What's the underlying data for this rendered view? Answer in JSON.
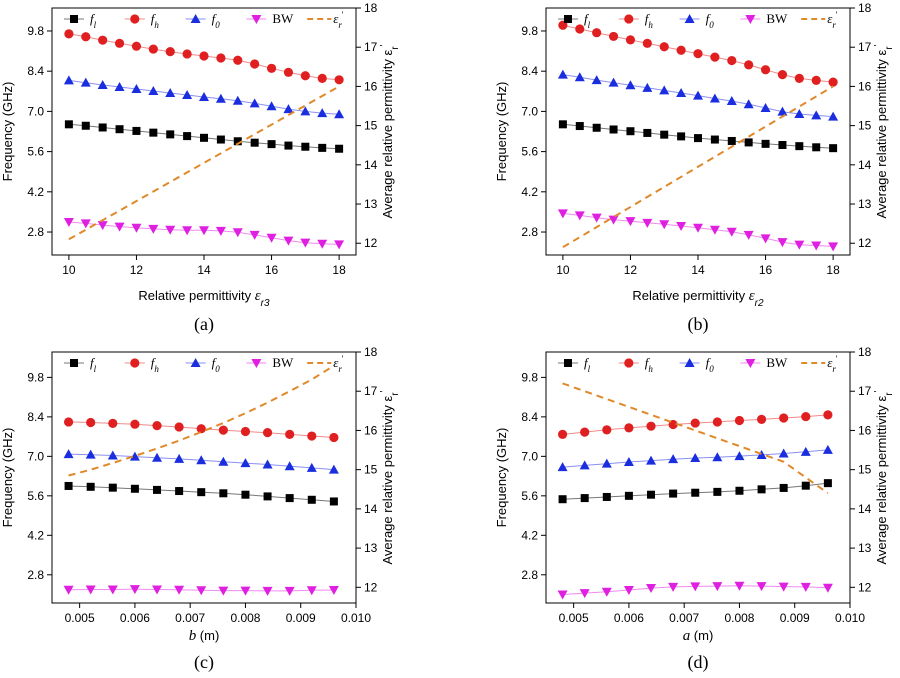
{
  "colors": {
    "f_l": "#000000",
    "f_h": "#e02020",
    "f_0": "#1a2ee0",
    "BW": "#e020e0",
    "eps_avg": "#e0892a",
    "f_l_line": "#777777",
    "f_h_line": "#f08a8a",
    "f_0_line": "#8a90f0",
    "BW_line": "#f08af0"
  },
  "common": {
    "y_left_label": "Frequency (GHz)",
    "y_right_label": "Average relative permittivity ε",
    "y_right_label_sub": "r",
    "y_right_label_sup": "'",
    "y_left_ticks": [
      "2.8",
      "4.2",
      "5.6",
      "7.0",
      "8.4",
      "9.8"
    ],
    "y_right_ticks": [
      "12",
      "13",
      "14",
      "15",
      "16",
      "17",
      "18"
    ],
    "legend": [
      {
        "key": "f_l",
        "text": "f",
        "sub": "l"
      },
      {
        "key": "f_h",
        "text": "f",
        "sub": "h"
      },
      {
        "key": "f_0",
        "text": "f",
        "sub": "0"
      },
      {
        "key": "BW",
        "text": "BW",
        "sub": ""
      },
      {
        "key": "eps_avg",
        "text": "ε",
        "sub": "r",
        "sup": "'"
      }
    ]
  },
  "chart_data": [
    {
      "type": "line",
      "panel": "(a)",
      "xlabel_prefix": "Relative permittivity ",
      "xlabel_var": "ε",
      "xlabel_sub": "r3",
      "xlim": [
        9.5,
        18.5
      ],
      "xticks": [
        "10",
        "12",
        "14",
        "16",
        "18"
      ],
      "ylim_left": [
        2.0,
        10.6
      ],
      "ylim_right": [
        11.7,
        18.0
      ],
      "x": [
        10,
        10.5,
        11,
        11.5,
        12,
        12.5,
        13,
        13.5,
        14,
        14.5,
        15,
        15.5,
        16,
        16.5,
        17,
        17.5,
        18
      ],
      "series": [
        {
          "name": "f_l",
          "axis": "left",
          "marker": "square",
          "values": [
            6.55,
            6.5,
            6.44,
            6.38,
            6.32,
            6.26,
            6.2,
            6.14,
            6.08,
            6.02,
            5.96,
            5.91,
            5.86,
            5.81,
            5.77,
            5.73,
            5.7
          ]
        },
        {
          "name": "f_h",
          "axis": "left",
          "marker": "circle",
          "values": [
            9.7,
            9.6,
            9.48,
            9.37,
            9.27,
            9.17,
            9.08,
            9.0,
            8.93,
            8.86,
            8.78,
            8.65,
            8.5,
            8.36,
            8.24,
            8.15,
            8.1
          ]
        },
        {
          "name": "f_0",
          "axis": "left",
          "marker": "triangle-up",
          "values": [
            8.08,
            8.0,
            7.92,
            7.85,
            7.78,
            7.71,
            7.64,
            7.57,
            7.5,
            7.44,
            7.37,
            7.28,
            7.18,
            7.08,
            7.0,
            6.94,
            6.9
          ]
        },
        {
          "name": "BW",
          "axis": "left",
          "marker": "triangle-down",
          "values": [
            3.15,
            3.1,
            3.04,
            2.99,
            2.95,
            2.91,
            2.88,
            2.86,
            2.86,
            2.84,
            2.79,
            2.7,
            2.6,
            2.5,
            2.43,
            2.39,
            2.37
          ]
        },
        {
          "name": "eps_avg",
          "axis": "right",
          "marker": "none",
          "style": "dashed",
          "x": [
            10,
            18
          ],
          "values": [
            12.1,
            16.0
          ]
        }
      ]
    },
    {
      "type": "line",
      "panel": "(b)",
      "xlabel_prefix": "Relative permittivity ",
      "xlabel_var": "ε",
      "xlabel_sub": "r2",
      "xlim": [
        9.5,
        18.5
      ],
      "xticks": [
        "10",
        "12",
        "14",
        "16",
        "18"
      ],
      "ylim_left": [
        2.0,
        10.6
      ],
      "ylim_right": [
        11.7,
        18.0
      ],
      "x": [
        10,
        10.5,
        11,
        11.5,
        12,
        12.5,
        13,
        13.5,
        14,
        14.5,
        15,
        15.5,
        16,
        16.5,
        17,
        17.5,
        18
      ],
      "series": [
        {
          "name": "f_l",
          "axis": "left",
          "marker": "square",
          "values": [
            6.55,
            6.49,
            6.43,
            6.37,
            6.31,
            6.25,
            6.19,
            6.13,
            6.07,
            6.02,
            5.97,
            5.92,
            5.87,
            5.83,
            5.79,
            5.75,
            5.72
          ]
        },
        {
          "name": "f_h",
          "axis": "left",
          "marker": "circle",
          "values": [
            10.0,
            9.87,
            9.74,
            9.61,
            9.49,
            9.37,
            9.25,
            9.13,
            9.01,
            8.89,
            8.77,
            8.62,
            8.45,
            8.28,
            8.15,
            8.08,
            8.02
          ]
        },
        {
          "name": "f_0",
          "axis": "left",
          "marker": "triangle-up",
          "values": [
            8.28,
            8.19,
            8.09,
            8.0,
            7.91,
            7.82,
            7.73,
            7.64,
            7.55,
            7.45,
            7.36,
            7.25,
            7.12,
            6.99,
            6.91,
            6.86,
            6.82
          ]
        },
        {
          "name": "BW",
          "axis": "left",
          "marker": "triangle-down",
          "values": [
            3.45,
            3.38,
            3.3,
            3.23,
            3.18,
            3.12,
            3.07,
            3.01,
            2.95,
            2.88,
            2.81,
            2.7,
            2.58,
            2.45,
            2.36,
            2.33,
            2.3
          ]
        },
        {
          "name": "eps_avg",
          "axis": "right",
          "marker": "none",
          "style": "dashed",
          "x": [
            10,
            18
          ],
          "values": [
            11.9,
            16.0
          ]
        }
      ]
    },
    {
      "type": "line",
      "panel": "(c)",
      "xlabel_prefix": "",
      "xlabel_var": "b",
      "xlabel_sub": "",
      "xlabel_suffix": " (m)",
      "xlim": [
        0.0045,
        0.01
      ],
      "xticks": [
        "0.005",
        "0.006",
        "0.007",
        "0.008",
        "0.009",
        "0.010"
      ],
      "ylim_left": [
        1.8,
        10.7
      ],
      "ylim_right": [
        11.6,
        18.0
      ],
      "x": [
        0.0048,
        0.0052,
        0.0056,
        0.006,
        0.0064,
        0.0068,
        0.0072,
        0.0076,
        0.008,
        0.0084,
        0.0088,
        0.0092,
        0.0096
      ],
      "series": [
        {
          "name": "f_l",
          "axis": "left",
          "marker": "square",
          "values": [
            5.95,
            5.92,
            5.89,
            5.85,
            5.81,
            5.77,
            5.73,
            5.69,
            5.64,
            5.58,
            5.52,
            5.46,
            5.4
          ]
        },
        {
          "name": "f_h",
          "axis": "left",
          "marker": "circle",
          "values": [
            8.22,
            8.2,
            8.17,
            8.14,
            8.09,
            8.04,
            7.98,
            7.93,
            7.88,
            7.84,
            7.78,
            7.72,
            7.67
          ]
        },
        {
          "name": "f_0",
          "axis": "left",
          "marker": "triangle-up",
          "values": [
            7.08,
            7.06,
            7.03,
            6.99,
            6.95,
            6.91,
            6.86,
            6.81,
            6.76,
            6.71,
            6.65,
            6.59,
            6.53
          ]
        },
        {
          "name": "BW",
          "axis": "left",
          "marker": "triangle-down",
          "values": [
            2.27,
            2.28,
            2.28,
            2.29,
            2.28,
            2.27,
            2.25,
            2.24,
            2.24,
            2.23,
            2.23,
            2.25,
            2.26
          ]
        },
        {
          "name": "eps_avg",
          "axis": "right",
          "marker": "none",
          "style": "dashed",
          "x": [
            0.0048,
            0.0052,
            0.0056,
            0.006,
            0.0064,
            0.0068,
            0.0072,
            0.0076,
            0.008,
            0.0084,
            0.0088,
            0.0092,
            0.0096
          ],
          "values": [
            14.85,
            15.0,
            15.17,
            15.35,
            15.54,
            15.74,
            15.96,
            16.19,
            16.44,
            16.71,
            17.0,
            17.3,
            17.65
          ]
        }
      ]
    },
    {
      "type": "line",
      "panel": "(d)",
      "xlabel_prefix": "",
      "xlabel_var": "a",
      "xlabel_sub": "",
      "xlabel_suffix": " (m)",
      "xlim": [
        0.0045,
        0.01
      ],
      "xticks": [
        "0.005",
        "0.006",
        "0.007",
        "0.008",
        "0.009",
        "0.010"
      ],
      "ylim_left": [
        1.8,
        10.7
      ],
      "ylim_right": [
        11.6,
        18.0
      ],
      "x": [
        0.0048,
        0.0052,
        0.0056,
        0.006,
        0.0064,
        0.0068,
        0.0072,
        0.0076,
        0.008,
        0.0084,
        0.0088,
        0.0092,
        0.0096
      ],
      "series": [
        {
          "name": "f_l",
          "axis": "left",
          "marker": "square",
          "values": [
            5.48,
            5.52,
            5.56,
            5.6,
            5.64,
            5.68,
            5.71,
            5.74,
            5.78,
            5.83,
            5.88,
            5.96,
            6.05
          ]
        },
        {
          "name": "f_h",
          "axis": "left",
          "marker": "circle",
          "values": [
            7.78,
            7.86,
            7.94,
            8.01,
            8.07,
            8.13,
            8.18,
            8.22,
            8.27,
            8.31,
            8.36,
            8.41,
            8.47
          ]
        },
        {
          "name": "f_0",
          "axis": "left",
          "marker": "triangle-up",
          "values": [
            6.62,
            6.68,
            6.74,
            6.8,
            6.85,
            6.9,
            6.94,
            6.97,
            7.01,
            7.05,
            7.1,
            7.16,
            7.23
          ]
        },
        {
          "name": "BW",
          "axis": "left",
          "marker": "triangle-down",
          "values": [
            2.1,
            2.15,
            2.2,
            2.26,
            2.33,
            2.37,
            2.39,
            2.4,
            2.41,
            2.4,
            2.38,
            2.37,
            2.34
          ]
        },
        {
          "name": "eps_avg",
          "axis": "right",
          "marker": "none",
          "style": "dashed",
          "x": [
            0.0048,
            0.0052,
            0.0056,
            0.006,
            0.0064,
            0.0068,
            0.0072,
            0.0076,
            0.008,
            0.0084,
            0.0088,
            0.0092,
            0.0096
          ],
          "values": [
            17.2,
            17.0,
            16.8,
            16.6,
            16.4,
            16.2,
            16.0,
            15.8,
            15.6,
            15.4,
            15.2,
            14.8,
            14.4
          ]
        }
      ]
    }
  ]
}
